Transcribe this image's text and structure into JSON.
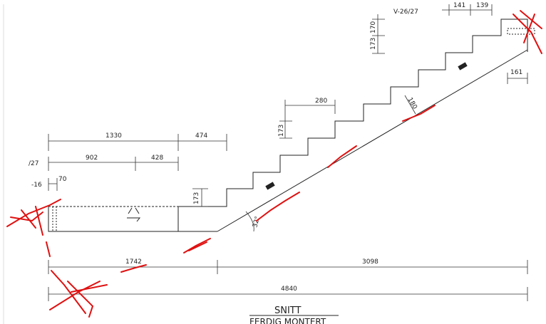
{
  "reference": "V-26/27",
  "dimensions": [
    "141",
    "139",
    "173",
    "170",
    "161",
    "280",
    "180",
    "173",
    "1330",
    "474",
    "/27",
    "902",
    "428",
    "-16",
    "70",
    "173",
    "32°",
    "1742",
    "3098",
    "4840"
  ],
  "title": "SNITT",
  "subtitle": "FERDIG MONTERT"
}
